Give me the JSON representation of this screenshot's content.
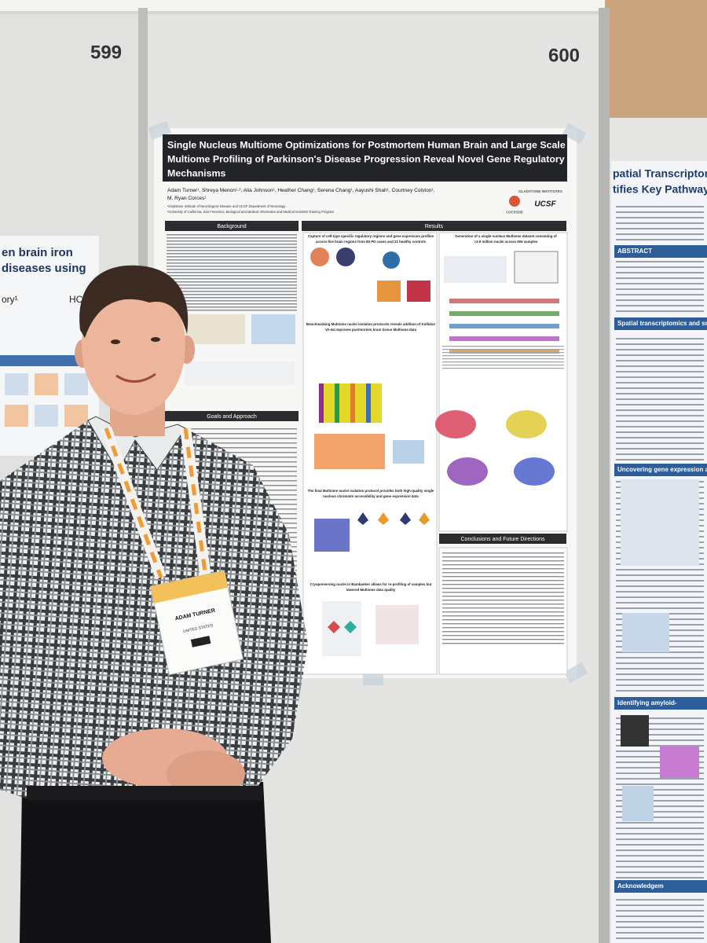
{
  "boards": {
    "left_number": "599",
    "right_number": "600"
  },
  "left_poster": {
    "title_lines": [
      "en brain iron",
      "diseases using"
    ],
    "authors": "ory¹",
    "institution": "HCB"
  },
  "center_poster": {
    "title_lines": [
      "Single Nucleus Multiome Optimizations for Postmortem Human Brain and Large Scale",
      "Multiome Profiling of Parkinson's Disease Progression Reveal Novel Gene Regulatory",
      "Mechanisms"
    ],
    "author_lines": [
      "Adam Turner¹, Shreya Menon¹·², Alia Johnson¹, Heather Chang¹, Serena Chang¹, Aayushi Shah¹, Courtney Colston¹,",
      "M. Ryan Corces¹"
    ],
    "affiliations": [
      "¹Gladstone Institute of Neurological Disease and UCSF Department of Neurology",
      "²University of California, San Francisco, Biological and Medical Informatics and Medical Scientist Training Program"
    ],
    "logos": [
      "GLADSTONE INSTITUTES",
      "corceslab",
      "UCSF"
    ],
    "sections": {
      "background": "Background",
      "results": "Results",
      "goals": "Goals and Approach",
      "conclusions": "Conclusions and Future Directions"
    },
    "result_headings": [
      [
        "Capture of cell-type specific regulatory regions and gene expression profiles",
        "across five brain regions from 80 PD cases and 21 healthy controls"
      ],
      [
        "Generation of a single nucleus Multiome dataset consisting of",
        ">3.9 million nuclei across 505 samples"
      ],
      [
        "Benchmarking Multiome nuclei isolation protocols reveals addition of Kollidon",
        "VA-64 improves postmortem brain tissue Multiome data"
      ],
      [
        "The final Multiome nuclei isolation protocol provides both high-quality single",
        "nucleus chromatin accessibility and gene expression data"
      ],
      [
        "Cryopreserving nuclei in Bambanker allows for re-profiling of samples but",
        "lowered Multiome data quality"
      ]
    ]
  },
  "right_poster": {
    "title_lines": [
      "patial Transcriptomics in",
      "tifies Key Pathways of A"
    ],
    "sections": [
      "ABSTRACT",
      "Spatial transcriptomics and snRNA-se",
      "Uncovering gene expression and",
      "Identifying amyloid-",
      "Acknowledgem"
    ]
  },
  "badge": {
    "name": "ADAM TURNER",
    "country": "UNITED STATES"
  }
}
